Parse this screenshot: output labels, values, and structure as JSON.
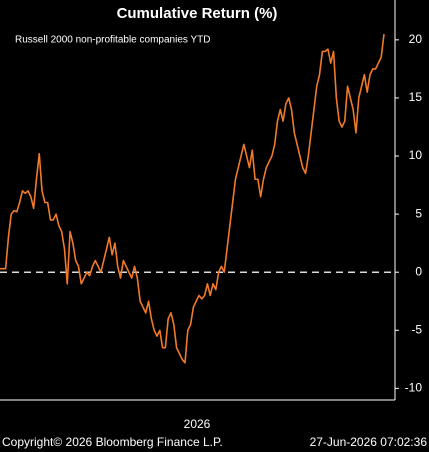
{
  "chart_data": {
    "type": "line",
    "title": "Cumulative Return (%)",
    "subtitle": "Russell 2000 non-profitable companies YTD",
    "x_label": "2026",
    "source": "Copyright© 2026 Bloomberg Finance L.P.",
    "timestamp": "27-Jun-2026 07:02:36",
    "values": [
      0.3,
      0.3,
      0.3,
      3,
      5,
      5.3,
      5.2,
      6,
      7,
      6.8,
      7,
      6.5,
      5.5,
      8,
      10.2,
      7,
      6,
      6,
      4.5,
      4.5,
      5,
      4,
      3.5,
      2,
      -1,
      3.5,
      2.5,
      1,
      0.5,
      -1,
      -0.5,
      0,
      -0.3,
      0.5,
      1,
      0.5,
      0,
      1,
      2,
      3,
      1.5,
      2.5,
      0.5,
      -0.5,
      1,
      0.5,
      0,
      -0.5,
      0.5,
      -0.5,
      -2.5,
      -3,
      -3.5,
      -2.5,
      -4,
      -5,
      -5.5,
      -5,
      -6.5,
      -6.5,
      -4,
      -3.5,
      -4.5,
      -6.5,
      -7,
      -7.5,
      -7.8,
      -5,
      -4.5,
      -3,
      -2.5,
      -2,
      -2.3,
      -2,
      -1,
      -2,
      -1,
      -1.5,
      0,
      0.5,
      0,
      2,
      4,
      6,
      8,
      9,
      10,
      11,
      10,
      9,
      10.5,
      8,
      8,
      6.5,
      8,
      9,
      9.5,
      10,
      11,
      13,
      14,
      13,
      14.5,
      15,
      14,
      12,
      11,
      10,
      9,
      8.5,
      10,
      12,
      14,
      16,
      17,
      19,
      19,
      19.2,
      18,
      19,
      15,
      13,
      12.5,
      13,
      16,
      15,
      14,
      12,
      15,
      16,
      17,
      15.5,
      17,
      17.5,
      17.5,
      18,
      18.5,
      20.5
    ],
    "color": "#f07a2a",
    "ylim": [
      -11,
      23
    ],
    "yticks": [
      -10,
      -5,
      0,
      5,
      10,
      15,
      20
    ],
    "y_axis_side": "right",
    "hline": 0
  }
}
